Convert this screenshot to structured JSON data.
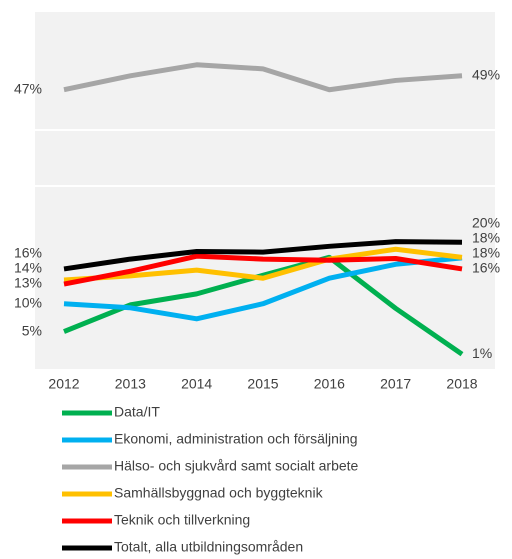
{
  "chart_data": {
    "type": "line",
    "categories": [
      "2012",
      "2013",
      "2014",
      "2015",
      "2016",
      "2017",
      "2018"
    ],
    "ylim": [
      0,
      60
    ],
    "series": [
      {
        "name": "Data/IT",
        "color": "#00b050",
        "values": [
          4.9,
          9.5,
          11.4,
          14.6,
          17.7,
          8.9,
          1
        ],
        "value_labels": [
          "5%",
          null,
          null,
          null,
          null,
          null,
          "1%"
        ]
      },
      {
        "name": "Ekonomi, administration och försäljning",
        "color": "#00b0f0",
        "values": [
          9.7,
          9.0,
          7.1,
          9.7,
          14.1,
          16.5,
          17.6
        ],
        "value_labels": [
          "10%",
          null,
          null,
          null,
          null,
          null,
          "18%"
        ]
      },
      {
        "name": "Hälso- och sjukvård samt socialt arbete",
        "color": "#a6a6a6",
        "values": [
          46.6,
          49,
          50.9,
          50.2,
          46.6,
          48.2,
          49
        ],
        "value_labels": [
          "47%",
          null,
          null,
          null,
          null,
          null,
          "49%"
        ]
      },
      {
        "name": "Samhällsbyggnad och byggteknik",
        "color": "#ffc000",
        "values": [
          13.8,
          14.5,
          15.5,
          14.1,
          17.4,
          19.1,
          17.7
        ],
        "value_labels": [
          "14%",
          null,
          null,
          null,
          null,
          null,
          "18%"
        ]
      },
      {
        "name": "Teknik och tillverkning",
        "color": "#ff0000",
        "values": [
          13.1,
          15.3,
          17.9,
          17.4,
          17.2,
          17.5,
          15.7
        ],
        "value_labels": [
          "13%",
          null,
          null,
          null,
          null,
          null,
          "16%"
        ]
      },
      {
        "name": "Totalt, alla utbildningsområden",
        "color": "#000000",
        "values": [
          15.7,
          17.4,
          18.7,
          18.6,
          19.6,
          20.4,
          20.3
        ],
        "value_labels": [
          "16%",
          null,
          null,
          null,
          null,
          null,
          "20%"
        ]
      }
    ]
  }
}
